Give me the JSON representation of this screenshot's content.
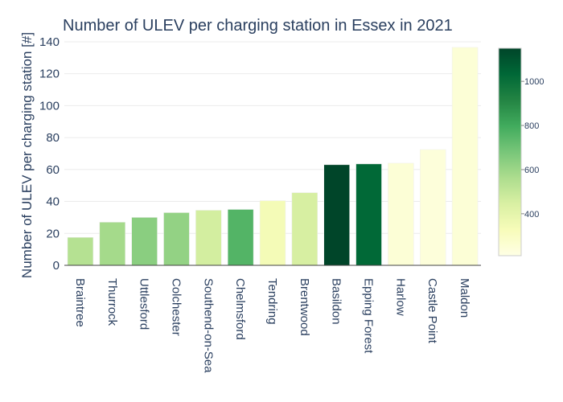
{
  "chart_data": {
    "type": "bar",
    "title": "Number of ULEV per charging station in Essex in 2021",
    "xlabel": "",
    "ylabel": "Number of ULEV per charging station [#]",
    "ylim": [
      0,
      143
    ],
    "yticks": [
      0,
      20,
      40,
      60,
      80,
      100,
      120,
      140
    ],
    "grid": true,
    "categories": [
      "Braintree",
      "Thurrock",
      "Uttlesford",
      "Colchester",
      "Southend-on-Sea",
      "Chelmsford",
      "Tendring",
      "Brentwood",
      "Basildon",
      "Epping Forest",
      "Harlow",
      "Castle Point",
      "Maldon"
    ],
    "values": [
      17.5,
      27,
      30,
      33,
      34.5,
      35,
      40.5,
      45.5,
      63,
      63.5,
      64,
      72.5,
      136.5
    ],
    "color_values": [
      540,
      580,
      640,
      620,
      460,
      760,
      340,
      450,
      1150,
      1030,
      250,
      240,
      250
    ],
    "colorbar": {
      "range": [
        210,
        1150
      ],
      "ticks": [
        400,
        600,
        800,
        1000
      ],
      "colorscale": "YlGn"
    }
  }
}
